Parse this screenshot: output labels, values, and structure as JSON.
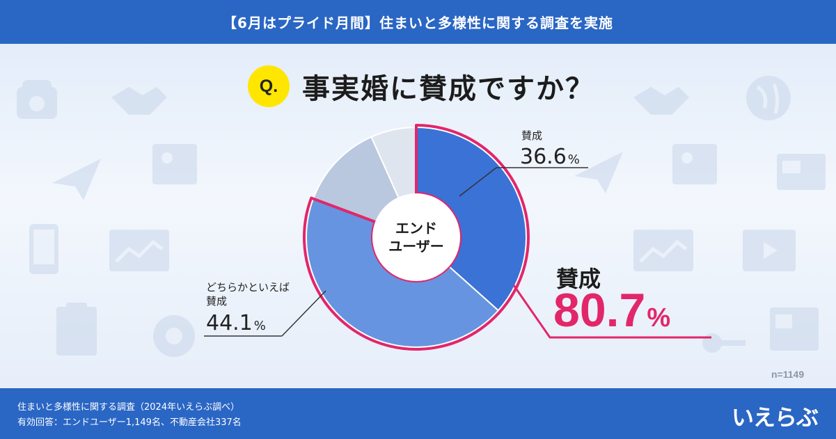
{
  "header": {
    "title": "【6月はプライド月間】住まいと多様性に関する調査を実施"
  },
  "question": {
    "badge": "Q.",
    "text": "事実婚に賛成ですか？"
  },
  "chart_data": {
    "type": "pie",
    "center_label": [
      "エンド",
      "ユーザー"
    ],
    "slices": [
      {
        "label": "賛成",
        "value": 36.6,
        "color": "#3a72d6"
      },
      {
        "label": "どちらかといえば賛成",
        "value": 44.1,
        "color": "#6794e0"
      },
      {
        "label": "",
        "value": 12.6,
        "color": "#b9c8de"
      },
      {
        "label": "",
        "value": 6.7,
        "color": "#dfe5ee"
      }
    ],
    "highlight": {
      "label": "賛成",
      "value": 80.7,
      "color": "#e2266a"
    }
  },
  "labels": {
    "agree": {
      "name": "賛成",
      "value": "36.6",
      "unit": "%"
    },
    "somewhat": {
      "name_line1": "どちらかといえば",
      "name_line2": "賛成",
      "value": "44.1",
      "unit": "%"
    },
    "total": {
      "name": "賛成",
      "value": "80.7",
      "unit": "%"
    }
  },
  "sample_size": "n=1149",
  "footer": {
    "line1": "住まいと多様性に関する調査（2024年いえらぶ調べ）",
    "line2": "有効回答：エンドユーザー1,149名、不動産会社337名",
    "logo": "いえらぶ"
  },
  "colors": {
    "brand_blue": "#2a66c4",
    "accent_pink": "#e2266a",
    "badge_yellow": "#ffe600"
  }
}
